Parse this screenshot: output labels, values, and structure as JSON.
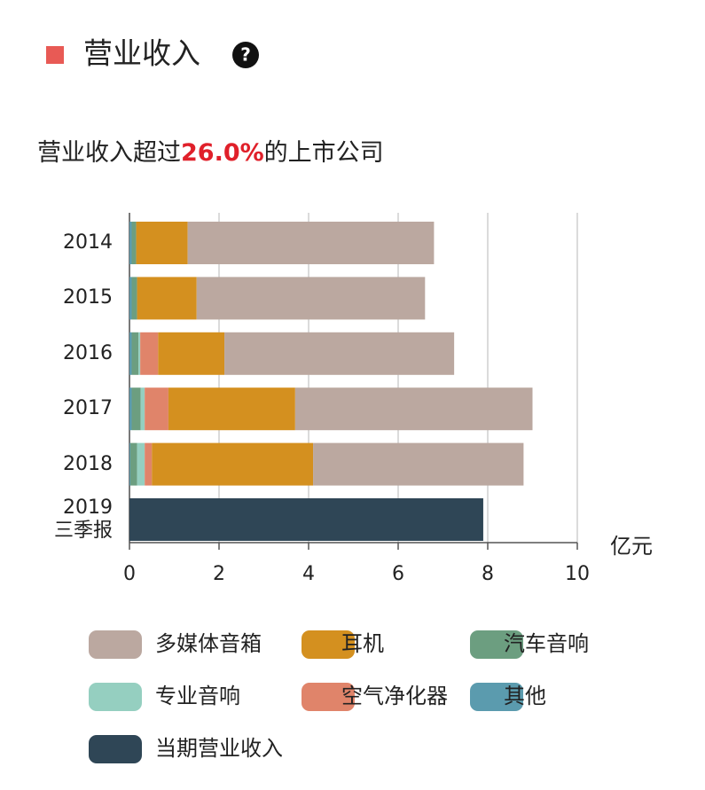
{
  "chart_data": {
    "type": "stacked_barh",
    "title": "营业收入",
    "subtitle": {
      "prefix": "营业收入超过",
      "highlight": "26.0%",
      "suffix": "的上市公司"
    },
    "x_unit": "亿元",
    "categories": [
      "2014",
      "2015",
      "2016",
      "2017",
      "2018",
      "2019\n三季报"
    ],
    "series": [
      {
        "name": "其他",
        "color": "#5b9bae",
        "values": [
          0.05,
          0.05,
          0.05,
          0.05,
          0.02,
          null
        ]
      },
      {
        "name": "汽车音响",
        "color": "#6c9e80",
        "values": [
          0.1,
          0.12,
          0.15,
          0.2,
          0.15,
          null
        ]
      },
      {
        "name": "专业音响",
        "color": "#95cfc0",
        "values": [
          0,
          0,
          0.04,
          0.09,
          0.17,
          null
        ]
      },
      {
        "name": "空气净化器",
        "color": "#e0846a",
        "values": [
          0,
          0,
          0.4,
          0.53,
          0.16,
          null
        ]
      },
      {
        "name": "耳机",
        "color": "#d4901f",
        "values": [
          1.15,
          1.33,
          1.48,
          2.83,
          3.6,
          null
        ]
      },
      {
        "name": "多媒体音箱",
        "color": "#bba8a0",
        "values": [
          5.5,
          5.1,
          5.13,
          5.3,
          4.7,
          null
        ]
      },
      {
        "name": "当期营业收入",
        "color": "#2f4656",
        "values": [
          null,
          null,
          null,
          null,
          null,
          7.9
        ]
      }
    ],
    "legend_order": [
      5,
      4,
      1,
      2,
      3,
      0,
      6
    ],
    "xlim": [
      0,
      10
    ],
    "xticks": [
      0,
      2,
      4,
      6,
      8,
      10
    ],
    "grid": true
  }
}
